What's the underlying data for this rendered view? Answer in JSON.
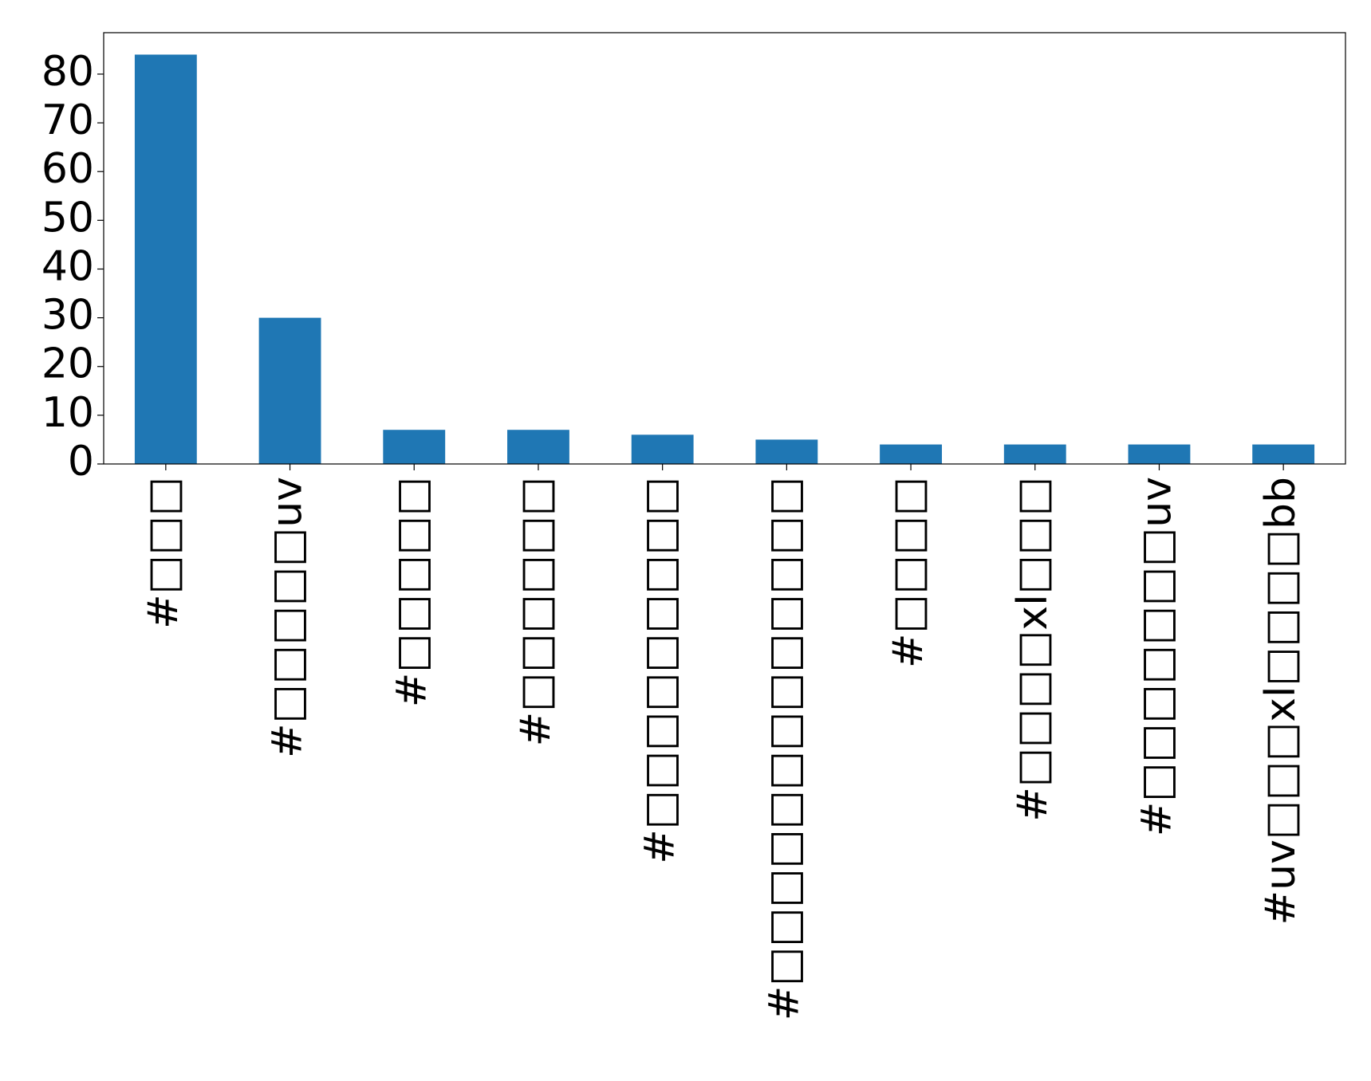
{
  "chart_data": {
    "type": "bar",
    "categories": [
      "#□□□",
      "#□□□□□uv",
      "#□□□□□",
      "#□□□□□□",
      "#□□□□□□□□□",
      "#□□□□□□□□□□□□□",
      "#□□□□",
      "#□□□□xl□□□",
      "#□□□□□□□uv",
      "#uv□□□xl□□□□bb"
    ],
    "values": [
      84,
      30,
      7,
      7,
      6,
      5,
      4,
      4,
      4,
      4
    ],
    "color": "#1f77b4",
    "ylim": [
      0,
      88.5
    ],
    "yticks": [
      0,
      10,
      20,
      30,
      40,
      50,
      60,
      70,
      80
    ],
    "grid": false
  }
}
